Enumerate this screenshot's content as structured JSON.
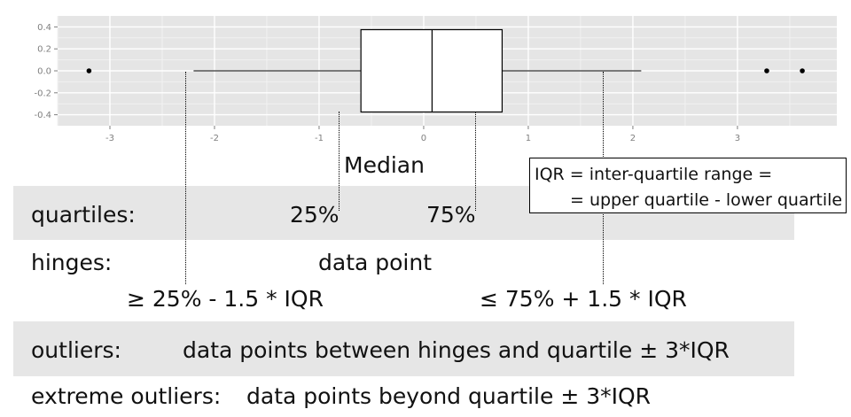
{
  "chart_data": {
    "type": "boxplot",
    "orientation": "horizontal",
    "box": {
      "whisker_low": -2.2,
      "q1": -0.6,
      "median": 0.08,
      "q3": 0.75,
      "whisker_high": 2.08
    },
    "outliers": [
      -3.2,
      3.28,
      3.62
    ],
    "x_ticks": [
      "-3",
      "-2",
      "-1",
      "0",
      "1",
      "2",
      "3"
    ],
    "y_ticks": [
      "0.4",
      "0.2",
      "0.0",
      "-0.2",
      "-0.4"
    ],
    "xlim": [
      -3.5,
      3.95
    ],
    "ylim": [
      -0.5,
      0.5
    ],
    "box_ylim": [
      -0.375,
      0.375
    ],
    "grid": true,
    "colors": {
      "panel": "#e5e5e5",
      "grid_major": "#ffffff",
      "grid_minor": "#f2f2f2",
      "box_fill": "#ffffff",
      "stroke": "#000000"
    }
  },
  "annotations": {
    "median": "Median",
    "iqr_line1": "IQR = inter-quartile range =",
    "iqr_line2": "= upper quartile - lower quartile",
    "quartiles_label": "quartiles:",
    "q25": "25%",
    "q75": "75%",
    "hinges_label": "hinges:",
    "data_point": "data point",
    "lower_hinge": "≥ 25% - 1.5 * IQR",
    "upper_hinge": "≤ 75% + 1.5 * IQR",
    "outliers_label": "outliers:",
    "outliers_desc": "data points between hinges and quartile ± 3*IQR",
    "extreme_label": "extreme outliers:",
    "extreme_desc": "data points beyond quartile ± 3*IQR"
  },
  "colors": {
    "band": "#e6e6e6",
    "text": "#111111"
  }
}
